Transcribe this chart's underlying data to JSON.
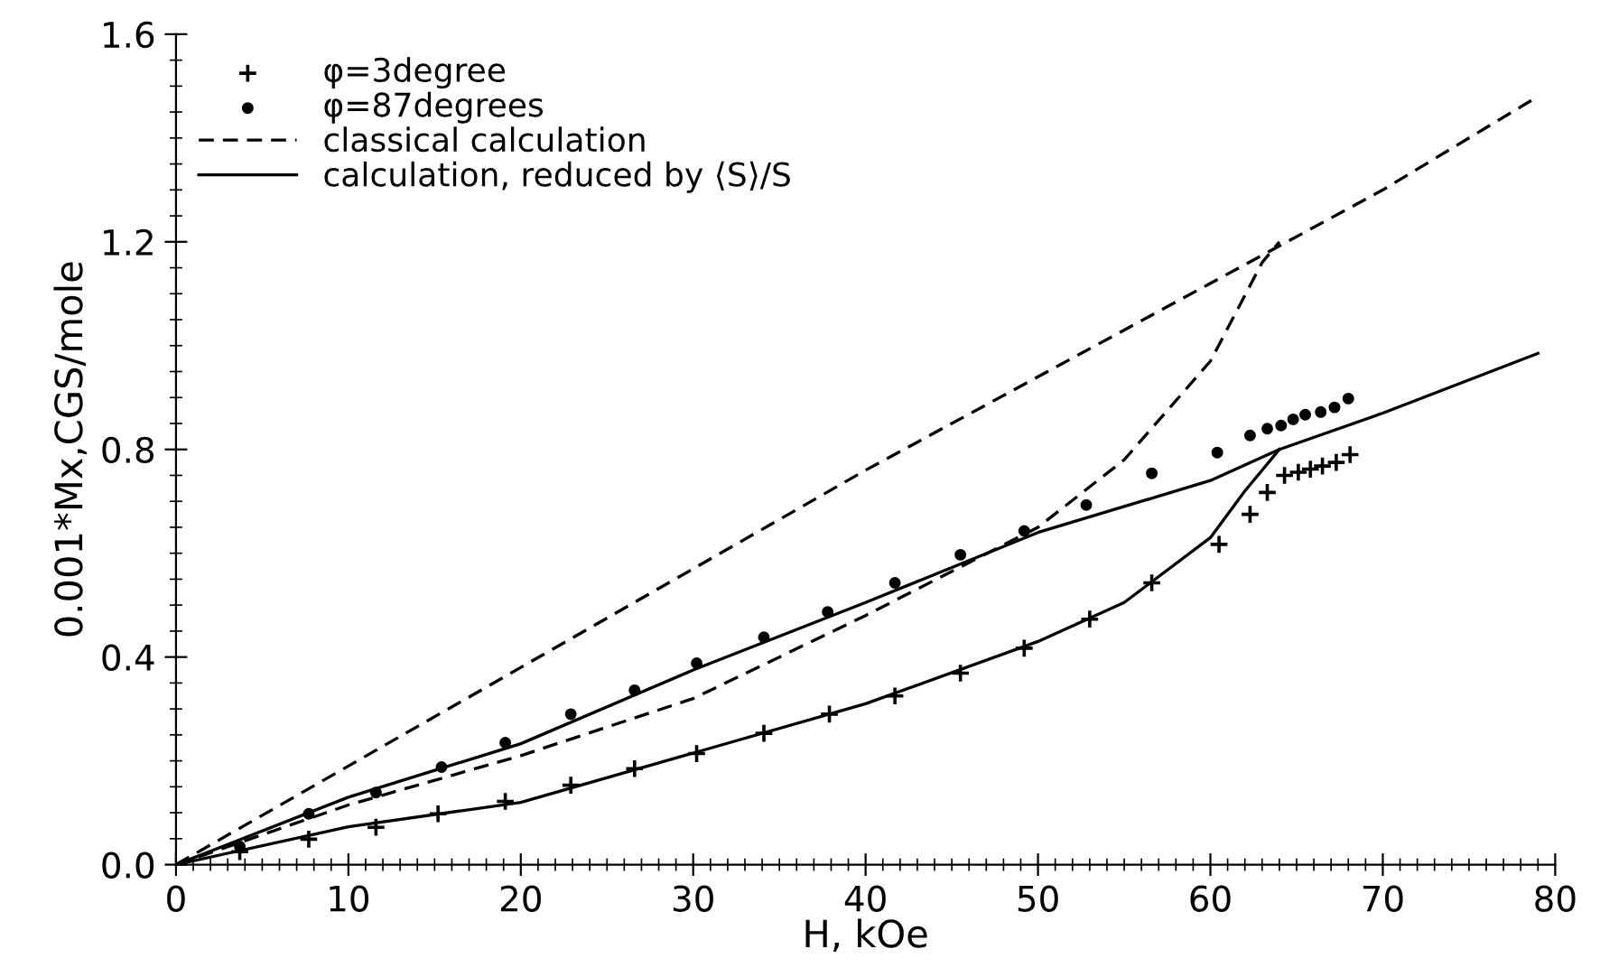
{
  "chart_data": {
    "type": "line",
    "xlabel": "H, kOe",
    "ylabel": "0.001*Mx,CGS/mole",
    "xlim": [
      0,
      80
    ],
    "ylim": [
      0,
      1.6
    ],
    "xticks": [
      0,
      10,
      20,
      30,
      40,
      50,
      60,
      70,
      80
    ],
    "yticks": [
      {
        "value": 0,
        "label": "0.0"
      },
      {
        "value": 0.4,
        "label": "0.4"
      },
      {
        "value": 0.8,
        "label": "0.8"
      },
      {
        "value": 1.2,
        "label": "1.2"
      },
      {
        "value": 1.6,
        "label": "1.6"
      }
    ],
    "grid": false,
    "legend": "top left",
    "series": [
      {
        "name": "φ=3degree",
        "type": "scatter",
        "marker": "cross",
        "color": "#000000",
        "x": [
          3.7,
          7.7,
          11.6,
          15.2,
          19.1,
          22.9,
          26.6,
          30.2,
          34.1,
          37.9,
          41.7,
          45.5,
          49.2,
          53,
          56.6,
          60.5,
          62.3,
          63.3,
          64.3,
          65.1,
          65.8,
          66.5,
          67.3,
          68.1
        ],
        "values": [
          0.025,
          0.049,
          0.072,
          0.098,
          0.122,
          0.153,
          0.185,
          0.214,
          0.253,
          0.29,
          0.325,
          0.369,
          0.417,
          0.473,
          0.543,
          0.617,
          0.675,
          0.717,
          0.75,
          0.756,
          0.762,
          0.768,
          0.775,
          0.79
        ]
      },
      {
        "name": "φ=87degrees",
        "type": "scatter",
        "marker": "circle",
        "color": "#000000",
        "x": [
          3.7,
          7.7,
          11.6,
          15.4,
          19.1,
          22.9,
          26.6,
          30.2,
          34.1,
          37.8,
          41.7,
          45.5,
          49.2,
          52.8,
          56.6,
          60.4,
          62.3,
          63.3,
          64.1,
          64.8,
          65.5,
          66.4,
          67.2,
          68
        ],
        "values": [
          0.035,
          0.098,
          0.139,
          0.188,
          0.235,
          0.29,
          0.336,
          0.388,
          0.438,
          0.487,
          0.543,
          0.597,
          0.643,
          0.693,
          0.754,
          0.794,
          0.827,
          0.84,
          0.846,
          0.858,
          0.867,
          0.872,
          0.881,
          0.898
        ]
      },
      {
        "name": "classical calculation",
        "line_style": "dashed",
        "color": "#000000",
        "x": [
          0,
          10,
          20,
          30,
          40,
          50,
          60,
          70,
          79
        ],
        "values": [
          0,
          0.19,
          0.38,
          0.57,
          0.76,
          0.94,
          1.12,
          1.3,
          1.48
        ]
      },
      {
        "line_style": "dashed",
        "color": "#000000",
        "x": [
          0,
          10,
          20,
          30,
          40,
          50,
          55,
          60,
          63,
          64
        ],
        "values": [
          0,
          0.115,
          0.21,
          0.32,
          0.48,
          0.65,
          0.78,
          0.97,
          1.16,
          1.2
        ]
      },
      {
        "name": "calculation, reduced by ⟨S⟩/S",
        "line_style": "solid",
        "color": "#000000",
        "x": [
          0,
          10,
          20,
          30,
          40,
          50,
          55,
          60,
          64,
          70,
          79
        ],
        "values": [
          0,
          0.13,
          0.233,
          0.375,
          0.505,
          0.64,
          0.69,
          0.74,
          0.8,
          0.87,
          0.985
        ]
      },
      {
        "line_style": "solid",
        "color": "#000000",
        "x": [
          0,
          10,
          20,
          30,
          40,
          50,
          55,
          60,
          62,
          64
        ],
        "values": [
          0,
          0.073,
          0.12,
          0.215,
          0.31,
          0.43,
          0.505,
          0.63,
          0.72,
          0.8
        ]
      }
    ]
  }
}
